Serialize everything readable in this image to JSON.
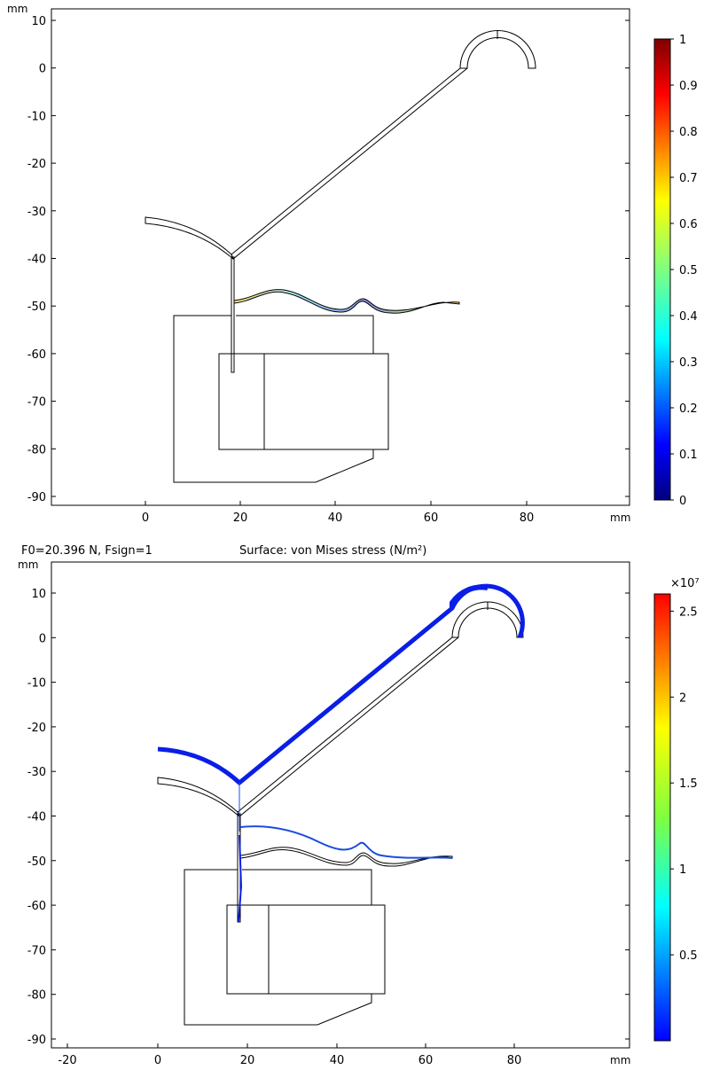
{
  "plots": [
    {
      "unit_y": "mm",
      "unit_x": "mm",
      "x_ticks": [
        "0",
        "20",
        "40",
        "60",
        "80"
      ],
      "y_ticks": [
        "10",
        "0",
        "-10",
        "-20",
        "-30",
        "-40",
        "-50",
        "-60",
        "-70",
        "-80",
        "-90"
      ],
      "colorbar": {
        "labels": [
          "1",
          "0.9",
          "0.8",
          "0.7",
          "0.6",
          "0.5",
          "0.4",
          "0.3",
          "0.2",
          "0.1",
          "0"
        ],
        "exponent": ""
      }
    },
    {
      "param_text": "F0=20.396 N, Fsign=1",
      "title": "Surface: von Mises stress (N/m²)",
      "unit_y": "mm",
      "unit_x": "mm",
      "x_ticks": [
        "-20",
        "0",
        "20",
        "40",
        "60",
        "80"
      ],
      "y_ticks": [
        "10",
        "0",
        "-10",
        "-20",
        "-30",
        "-40",
        "-50",
        "-60",
        "-70",
        "-80",
        "-90"
      ],
      "colorbar": {
        "labels": [
          "2.5",
          "2",
          "1.5",
          "1",
          "0.5"
        ],
        "exponent": "×10⁷"
      }
    }
  ],
  "colors": {
    "stress_band": "#0a1ee6",
    "deformed_line": "#1a4de0"
  }
}
